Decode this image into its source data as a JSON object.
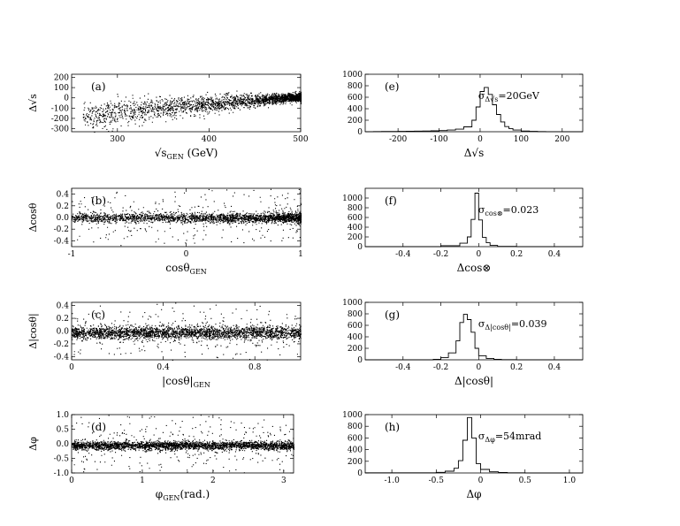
{
  "chart_data": [
    {
      "id": "a",
      "type": "scatter",
      "panel_label": "(a)",
      "xlabel": "√s_GEN (GeV)",
      "ylabel": "Δ√s",
      "xlim": [
        250,
        500
      ],
      "ylim": [
        -330,
        230
      ],
      "xticks": [
        300,
        400,
        500
      ],
      "yticks": [
        -300,
        -200,
        -100,
        0,
        100,
        200
      ],
      "xticklabels": [
        "300",
        "400",
        "500"
      ],
      "yticklabels": [
        "-300",
        "-200",
        "-100",
        "0",
        "100",
        "200"
      ],
      "density": {
        "x_min": 262,
        "x_max": 500,
        "y_center": 0,
        "spread_low": 160,
        "spread_high": 40,
        "n_points": 2600
      }
    },
    {
      "id": "b",
      "type": "scatter",
      "panel_label": "(b)",
      "xlabel": "cosθ_GEN",
      "ylabel": "Δcosθ",
      "xlim": [
        -1,
        1
      ],
      "ylim": [
        -0.5,
        0.5
      ],
      "xticks": [
        -1,
        0,
        1
      ],
      "yticks": [
        -0.4,
        -0.2,
        0,
        0.2,
        0.4
      ],
      "xticklabels": [
        "-1",
        "0",
        "1"
      ],
      "yticklabels": [
        "-0.4",
        "-0.2",
        "0.0",
        "0.2",
        "0.4"
      ],
      "density": {
        "y_center": 0,
        "core_width": 0.04,
        "n_points": 2600
      }
    },
    {
      "id": "c",
      "type": "scatter",
      "panel_label": "(c)",
      "xlabel": "|cosθ|_GEN",
      "ylabel": "Δ|cosθ|",
      "xlim": [
        0,
        1
      ],
      "ylim": [
        -0.45,
        0.45
      ],
      "xticks": [
        0,
        0.4,
        0.8
      ],
      "yticks": [
        -0.4,
        -0.2,
        0,
        0.2,
        0.4
      ],
      "xticklabels": [
        "0",
        "0.4",
        "0.8"
      ],
      "yticklabels": [
        "-0.4",
        "-0.2",
        "0.0",
        "0.2",
        "0.4"
      ],
      "density": {
        "y_center": -0.02,
        "core_width": 0.05,
        "n_points": 2800
      }
    },
    {
      "id": "d",
      "type": "scatter",
      "panel_label": "(d)",
      "xlabel": "φ_GEN(rad.)",
      "ylabel": "Δφ",
      "xlim": [
        0,
        3.14
      ],
      "ylim": [
        -1,
        1
      ],
      "xticks": [
        0,
        1,
        2,
        3
      ],
      "yticks": [
        -1,
        -0.5,
        0,
        0.5,
        1
      ],
      "xticklabels": [
        "0",
        "1",
        "2",
        "3"
      ],
      "yticklabels": [
        "-1.0",
        "-0.5",
        "0.0",
        "0.5",
        "1.0"
      ],
      "density": {
        "y_center": -0.05,
        "core_width": 0.07,
        "n_points": 3000
      }
    },
    {
      "id": "e",
      "type": "histogram",
      "panel_label": "(e)",
      "xlabel": "Δ√s",
      "ylabel": "",
      "annotation": "σ_Δ√s=20GeV",
      "xlim": [
        -280,
        250
      ],
      "ylim": [
        0,
        1000
      ],
      "xticks": [
        -200,
        -100,
        0,
        100,
        200
      ],
      "yticks": [
        0,
        200,
        400,
        600,
        800,
        1000
      ],
      "xticklabels": [
        "-200",
        "-100",
        "0",
        "100",
        "200"
      ],
      "yticklabels": [
        "0",
        "200",
        "400",
        "600",
        "800",
        "1000"
      ],
      "bins": {
        "edges": [
          -280,
          -260,
          -240,
          -220,
          -200,
          -180,
          -160,
          -140,
          -120,
          -100,
          -80,
          -60,
          -40,
          -20,
          -10,
          0,
          10,
          20,
          30,
          40,
          50,
          60,
          70,
          80,
          100,
          120,
          140,
          160,
          180,
          200,
          220,
          250
        ],
        "counts": [
          2,
          3,
          4,
          5,
          6,
          8,
          10,
          12,
          15,
          20,
          30,
          45,
          85,
          200,
          430,
          700,
          770,
          650,
          470,
          300,
          170,
          90,
          55,
          30,
          12,
          6,
          3,
          2,
          1,
          0,
          0
        ]
      }
    },
    {
      "id": "f",
      "type": "histogram",
      "panel_label": "(f)",
      "xlabel": "Δcos⊗",
      "ylabel": "",
      "annotation": "σ_cos⊗=0.023",
      "xlim": [
        -0.6,
        0.55
      ],
      "ylim": [
        0,
        1200
      ],
      "xticks": [
        -0.4,
        -0.2,
        0,
        0.2,
        0.4
      ],
      "yticks": [
        0,
        200,
        400,
        600,
        800,
        1000
      ],
      "xticklabels": [
        "-0.4",
        "-0.2",
        "0",
        "0.2",
        "0.4"
      ],
      "yticklabels": [
        "0",
        "200",
        "400",
        "600",
        "800",
        "1000"
      ],
      "bins": {
        "edges": [
          -0.6,
          -0.2,
          -0.1,
          -0.06,
          -0.04,
          -0.02,
          0,
          0.02,
          0.04,
          0.06,
          0.1,
          0.2,
          0.55
        ],
        "counts": [
          0,
          20,
          70,
          200,
          560,
          1100,
          550,
          190,
          80,
          25,
          6,
          0
        ]
      }
    },
    {
      "id": "g",
      "type": "histogram",
      "panel_label": "(g)",
      "xlabel": "Δ|cosθ|",
      "ylabel": "",
      "annotation": "σ_Δ|cosθ|=0.039",
      "xlim": [
        -0.6,
        0.55
      ],
      "ylim": [
        0,
        1000
      ],
      "xticks": [
        -0.4,
        -0.2,
        0,
        0.2,
        0.4
      ],
      "yticks": [
        0,
        200,
        400,
        600,
        800,
        1000
      ],
      "xticklabels": [
        "-0.4",
        "-0.2",
        "0",
        "0.2",
        "0.4"
      ],
      "yticklabels": [
        "0",
        "200",
        "400",
        "600",
        "800",
        "1000"
      ],
      "bins": {
        "edges": [
          -0.6,
          -0.24,
          -0.2,
          -0.16,
          -0.12,
          -0.1,
          -0.08,
          -0.06,
          -0.04,
          -0.02,
          0,
          0.04,
          0.08,
          0.12,
          0.2,
          0.55
        ],
        "counts": [
          0,
          10,
          40,
          120,
          330,
          650,
          790,
          700,
          480,
          200,
          70,
          25,
          10,
          3,
          0
        ]
      }
    },
    {
      "id": "h",
      "type": "histogram",
      "panel_label": "(h)",
      "xlabel": "Δφ",
      "ylabel": "",
      "annotation": "σ_Δφ=54mrad",
      "xlim": [
        -1.3,
        1.15
      ],
      "ylim": [
        0,
        1000
      ],
      "xticks": [
        -1,
        -0.5,
        0,
        0.5,
        1
      ],
      "yticks": [
        0,
        200,
        400,
        600,
        800,
        1000
      ],
      "xticklabels": [
        "-1.0",
        "-0.5",
        "0",
        "0.5",
        "1.0"
      ],
      "yticklabels": [
        "0",
        "200",
        "400",
        "600",
        "800",
        "1000"
      ],
      "bins": {
        "edges": [
          -1.3,
          -0.5,
          -0.4,
          -0.3,
          -0.25,
          -0.2,
          -0.15,
          -0.1,
          -0.05,
          0,
          0.1,
          0.2,
          0.3,
          0.5,
          1.15
        ],
        "counts": [
          3,
          10,
          30,
          80,
          210,
          560,
          950,
          600,
          160,
          60,
          20,
          8,
          3,
          0
        ]
      }
    }
  ]
}
